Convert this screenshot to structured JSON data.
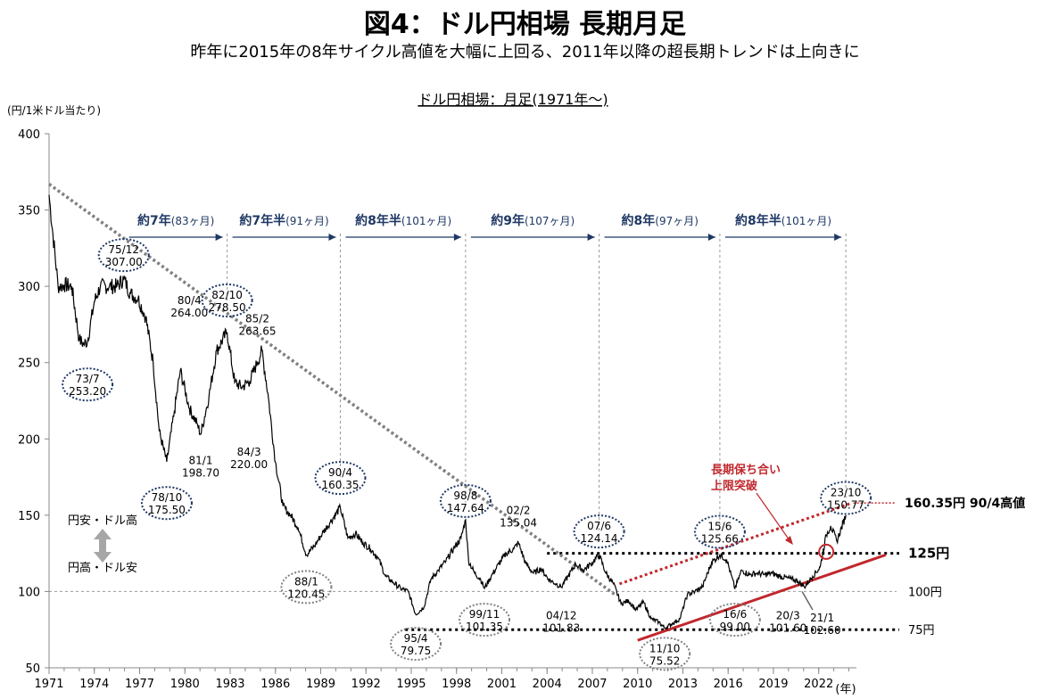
{
  "header": {
    "title": "図4：ドル円相場 長期月足",
    "subtitle": "昨年に2015年の8年サイクル高値を大幅に上回る、2011年以降の超長期トレンドは上向きに"
  },
  "chart_data": {
    "type": "line",
    "title": "ドル円相場：月足(1971年～)",
    "ylabel": "(円/1米ドル当たり)",
    "xlabel": "(年)",
    "ylim": [
      50,
      400
    ],
    "xlim": [
      1971,
      2024.5
    ],
    "yticks": [
      "50",
      "100",
      "150",
      "200",
      "250",
      "300",
      "350",
      "400"
    ],
    "yticks_values": [
      50,
      100,
      150,
      200,
      250,
      300,
      350,
      400
    ],
    "xticks": [
      "1971",
      "1974",
      "1977",
      "1980",
      "1983",
      "1986",
      "1989",
      "1992",
      "1995",
      "1998",
      "2001",
      "2004",
      "2007",
      "2010",
      "2013",
      "2016",
      "2019",
      "2022"
    ],
    "xticks_values": [
      1971,
      1974,
      1977,
      1980,
      1983,
      1986,
      1989,
      1992,
      1995,
      1998,
      2001,
      2004,
      2007,
      2010,
      2013,
      2016,
      2019,
      2022
    ],
    "grid": false,
    "series": [
      {
        "x": [
          1971.0,
          1971.6,
          1971.8,
          1972.0,
          1972.5,
          1973.0,
          1973.3,
          1973.55,
          1974.0,
          1974.4,
          1975.0,
          1975.5,
          1975.95,
          1976.4,
          1976.9,
          1977.4,
          1977.9,
          1978.3,
          1978.8,
          1979.3,
          1979.7,
          1980.3,
          1980.8,
          1981.05,
          1981.6,
          1982.1,
          1982.8,
          1983.3,
          1983.8,
          1984.3,
          1984.8,
          1985.1,
          1985.5,
          1986.0,
          1986.5,
          1987.0,
          1987.5,
          1988.05,
          1988.6,
          1989.1,
          1989.6,
          1990.3,
          1990.8,
          1991.3,
          1991.8,
          1992.3,
          1992.8,
          1993.3,
          1993.8,
          1994.3,
          1994.8,
          1995.3,
          1995.85,
          1996.3,
          1996.8,
          1997.3,
          1997.8,
          1998.3,
          1998.6,
          1998.8,
          1999.2,
          1999.6,
          1999.85,
          2000.3,
          2000.8,
          2001.3,
          2001.8,
          2002.1,
          2002.6,
          2003.1,
          2003.6,
          2004.1,
          2004.6,
          2004.95,
          2005.4,
          2005.9,
          2006.4,
          2006.9,
          2007.45,
          2007.9,
          2008.4,
          2008.9,
          2009.4,
          2009.9,
          2010.4,
          2010.9,
          2011.4,
          2011.8,
          2012.3,
          2012.8,
          2013.3,
          2013.8,
          2014.3,
          2014.9,
          2015.45,
          2015.9,
          2016.45,
          2016.9,
          2017.4,
          2017.9,
          2018.4,
          2018.9,
          2019.4,
          2019.9,
          2020.2,
          2020.6,
          2021.05,
          2021.6,
          2022.1,
          2022.5,
          2022.8,
          2023.2,
          2023.8
        ],
        "y": [
          360,
          300,
          300,
          301,
          300,
          265,
          262,
          264,
          290,
          300,
          300,
          300,
          305,
          295,
          292,
          280,
          250,
          205,
          185,
          218,
          245,
          220,
          210,
          203,
          228,
          258,
          270,
          237,
          234,
          238,
          250,
          258,
          230,
          185,
          156,
          150,
          142,
          124,
          130,
          138,
          145,
          155,
          135,
          138,
          132,
          128,
          122,
          110,
          106,
          102,
          100,
          85,
          90,
          108,
          114,
          120,
          128,
          135,
          147,
          120,
          112,
          108,
          102,
          110,
          118,
          125,
          128,
          132,
          118,
          112,
          115,
          108,
          105,
          103,
          110,
          118,
          114,
          118,
          124,
          112,
          105,
          92,
          94,
          88,
          93,
          82,
          80,
          76,
          79,
          82,
          98,
          100,
          103,
          119,
          124,
          121,
          102,
          114,
          111,
          112,
          111,
          112,
          110,
          109,
          108,
          107,
          103,
          110,
          116,
          137,
          143,
          133,
          150
        ]
      }
    ],
    "annotations": [
      {
        "label": [
          "75/12",
          "307.00"
        ],
        "x": 1975.95,
        "y": 307.0
      },
      {
        "label": [
          "73/7",
          "253.20"
        ],
        "x": 1973.55,
        "y": 253.2
      },
      {
        "label": [
          "78/10",
          "175.50"
        ],
        "x": 1978.8,
        "y": 175.5
      },
      {
        "label": [
          "80/4",
          "264.00"
        ],
        "x": 1980.3,
        "y": 264.0
      },
      {
        "label": [
          "81/1",
          "198.70"
        ],
        "x": 1981.05,
        "y": 198.7
      },
      {
        "label": [
          "82/10",
          "278.50"
        ],
        "x": 1982.8,
        "y": 278.5
      },
      {
        "label": [
          "85/2",
          "263.65"
        ],
        "x": 1985.1,
        "y": 263.65
      },
      {
        "label": [
          "84/3",
          "220.00"
        ],
        "x": 1984.25,
        "y": 220.0
      },
      {
        "label": [
          "88/1",
          "120.45"
        ],
        "x": 1988.05,
        "y": 120.45
      },
      {
        "label": [
          "90/4",
          "160.35"
        ],
        "x": 1990.3,
        "y": 160.35
      },
      {
        "label": [
          "95/4",
          "79.75"
        ],
        "x": 1995.3,
        "y": 79.75
      },
      {
        "label": [
          "98/8",
          "147.64"
        ],
        "x": 1998.6,
        "y": 147.64
      },
      {
        "label": [
          "99/11",
          "101.35"
        ],
        "x": 1999.85,
        "y": 101.35
      },
      {
        "label": [
          "02/2",
          "135.04"
        ],
        "x": 2002.1,
        "y": 135.04
      },
      {
        "label": [
          "04/12",
          "101.83"
        ],
        "x": 2004.95,
        "y": 101.83
      },
      {
        "label": [
          "07/6",
          "124.14"
        ],
        "x": 2007.45,
        "y": 124.14
      },
      {
        "label": [
          "11/10",
          "75.52"
        ],
        "x": 2011.8,
        "y": 75.52
      },
      {
        "label": [
          "15/6",
          "125.66"
        ],
        "x": 2015.45,
        "y": 125.66
      },
      {
        "label": [
          "16/6",
          "99.00"
        ],
        "x": 2016.45,
        "y": 99.0
      },
      {
        "label": [
          "20/3",
          "101.60"
        ],
        "x": 2020.2,
        "y": 101.6
      },
      {
        "label": [
          "21/1",
          "102.60"
        ],
        "x": 2021.05,
        "y": 102.6
      },
      {
        "label": [
          "23/10",
          "150.77"
        ],
        "x": 2023.8,
        "y": 150.77
      }
    ],
    "cycles": [
      {
        "bold": "約7年",
        "normal": "(83ヶ月)",
        "from": 1975.95,
        "to": 1982.8
      },
      {
        "bold": "約7年半",
        "normal": "(91ヶ月)",
        "from": 1982.8,
        "to": 1990.3
      },
      {
        "bold": "約8年半",
        "normal": "(101ヶ月)",
        "from": 1990.3,
        "to": 1998.6
      },
      {
        "bold": "約9年",
        "normal": "(107ヶ月)",
        "from": 1998.6,
        "to": 2007.45
      },
      {
        "bold": "約8年",
        "normal": "(97ヶ月)",
        "from": 2007.45,
        "to": 2015.45
      },
      {
        "bold": "約8年半",
        "normal": "(101ヶ月)",
        "from": 2015.45,
        "to": 2023.8
      }
    ],
    "levels": [
      {
        "label": "125円",
        "y": 125
      },
      {
        "label": "100円",
        "y": 100
      },
      {
        "label": "75円",
        "y": 75
      }
    ],
    "peak_level_label": "160.35円 90/4高値",
    "breakout_label": [
      "長期保ち合い",
      "上限突破"
    ],
    "yen_weak_label": "円安・ドル高",
    "yen_strong_label": "円高・ドル安",
    "colors": {
      "price": "#000000",
      "downtrend": "#808080",
      "breakout": "#c0282d",
      "ellipse": "#1f3864",
      "cycle_text": "#1f3864",
      "ellipse_grey": "#808080"
    }
  }
}
